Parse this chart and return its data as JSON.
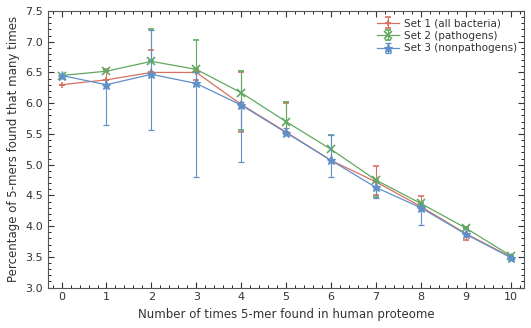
{
  "x": [
    0,
    1,
    2,
    3,
    4,
    5,
    6,
    7,
    8,
    9,
    10
  ],
  "set1_y": [
    6.3,
    6.38,
    6.5,
    6.5,
    5.98,
    5.53,
    5.07,
    4.72,
    4.32,
    3.88,
    3.5
  ],
  "set1_err_lo": [
    0.0,
    0.0,
    0.0,
    0.12,
    0.45,
    0.0,
    0.0,
    0.22,
    0.0,
    0.1,
    0.0
  ],
  "set1_err_hi": [
    0.0,
    0.17,
    0.37,
    0.0,
    0.53,
    0.47,
    0.0,
    0.26,
    0.17,
    0.11,
    0.0
  ],
  "set2_y": [
    6.45,
    6.52,
    6.68,
    6.55,
    6.17,
    5.7,
    5.25,
    4.75,
    4.37,
    3.97,
    3.52
  ],
  "set2_err_lo": [
    0.0,
    0.0,
    0.0,
    0.0,
    0.6,
    0.2,
    0.17,
    0.27,
    0.05,
    0.0,
    0.0
  ],
  "set2_err_hi": [
    0.0,
    0.0,
    0.52,
    0.47,
    0.35,
    0.32,
    0.24,
    0.0,
    0.0,
    0.0,
    0.0
  ],
  "set3_y": [
    6.45,
    6.3,
    6.47,
    6.32,
    5.97,
    5.52,
    5.07,
    4.63,
    4.3,
    3.87,
    3.49
  ],
  "set3_err_lo": [
    0.0,
    0.65,
    0.9,
    1.52,
    0.93,
    0.0,
    0.27,
    0.18,
    0.28,
    0.0,
    0.0
  ],
  "set3_err_hi": [
    0.0,
    0.0,
    0.72,
    0.18,
    0.05,
    0.07,
    0.42,
    0.0,
    0.0,
    0.0,
    0.0
  ],
  "set1_color": "#d87060",
  "set2_color": "#60a860",
  "set3_color": "#6090c8",
  "xlabel": "Number of times 5-mer found in human proteome",
  "ylabel": "Percentage of 5-mers found that many times",
  "xlim": [
    -0.3,
    10.3
  ],
  "ylim": [
    3.0,
    7.5
  ],
  "yticks": [
    3.0,
    3.5,
    4.0,
    4.5,
    5.0,
    5.5,
    6.0,
    6.5,
    7.0,
    7.5
  ],
  "xticks": [
    0,
    1,
    2,
    3,
    4,
    5,
    6,
    7,
    8,
    9,
    10
  ],
  "legend_labels": [
    "Set 1 (all bacteria)",
    "Set 2 (pathogens)",
    "Set 3 (nonpathogens)"
  ],
  "bg_color": "#ffffff",
  "axis_fontsize": 8.5,
  "tick_fontsize": 8,
  "legend_fontsize": 7.5
}
